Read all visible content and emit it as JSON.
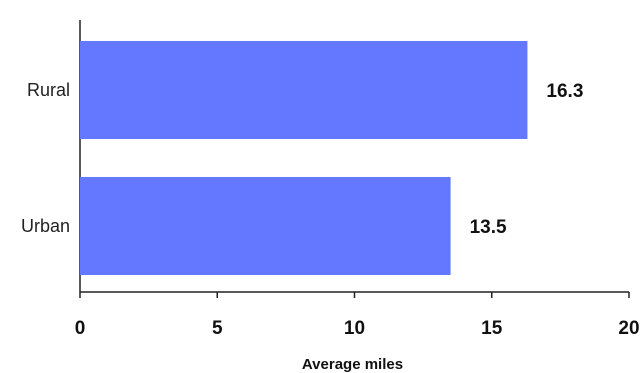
{
  "chart_data": {
    "type": "bar",
    "orientation": "horizontal",
    "categories": [
      "Rural",
      "Urban"
    ],
    "values": [
      16.3,
      13.5
    ],
    "value_labels": [
      "16.3",
      "13.5"
    ],
    "xlabel": "Average miles",
    "ylabel": "",
    "xlim": [
      0,
      20
    ],
    "xticks": [
      0,
      5,
      10,
      15,
      20
    ],
    "xtick_labels": [
      "0",
      "5",
      "10",
      "15",
      "20"
    ],
    "bar_color": "#6378ff",
    "grid": false,
    "legend": "none"
  }
}
